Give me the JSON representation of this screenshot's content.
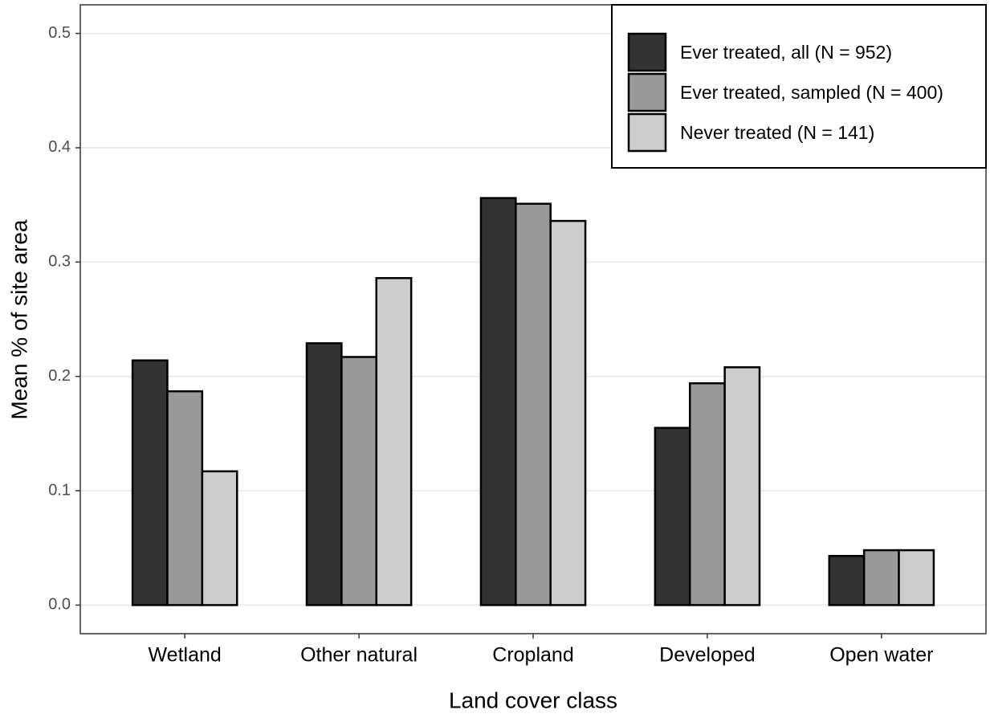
{
  "chart_data": {
    "type": "bar",
    "x_label": "Land cover class",
    "y_label": "Mean % of site area",
    "categories": [
      "Wetland",
      "Other natural",
      "Cropland",
      "Developed",
      "Open water"
    ],
    "series": [
      {
        "name": "Ever treated, all (N = 952)",
        "color": "#333333",
        "values": [
          0.214,
          0.229,
          0.356,
          0.155,
          0.043
        ]
      },
      {
        "name": "Ever treated, sampled (N = 400)",
        "color": "#999999",
        "values": [
          0.187,
          0.217,
          0.351,
          0.194,
          0.048
        ]
      },
      {
        "name": "Never treated (N = 141)",
        "color": "#cccccc",
        "values": [
          0.117,
          0.286,
          0.336,
          0.208,
          0.048
        ]
      }
    ],
    "ylim": [
      -0.025,
      0.525
    ],
    "yticks": [
      {
        "value": 0,
        "label": "0.0"
      },
      0.1,
      0.2,
      0.3,
      0.4,
      0.5
    ],
    "grid": true,
    "legend": "top-right"
  }
}
